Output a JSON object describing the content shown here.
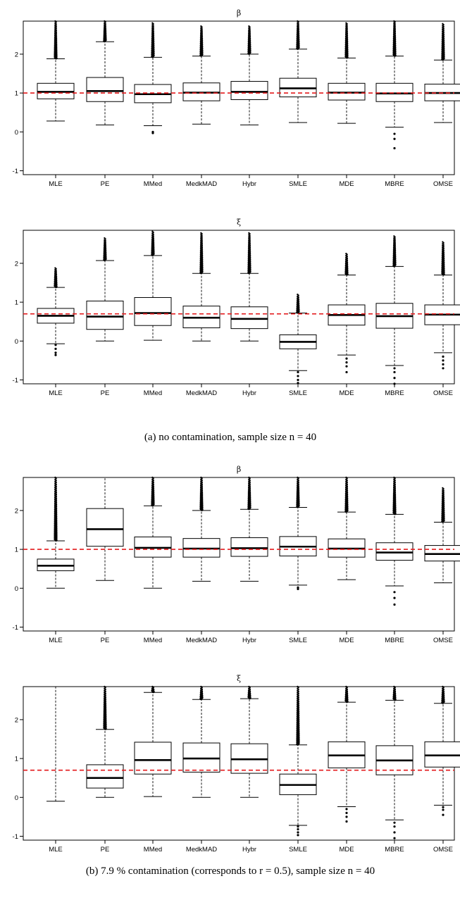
{
  "captions": {
    "a": "(a)  no contamination, sample size n = 40",
    "b": "(b)  7.9 % contamination (corresponds to r = 0.5), sample size n = 40"
  },
  "chart_data": [
    {
      "type": "boxplot",
      "title": "β",
      "categories": [
        "MLE",
        "PE",
        "MMed",
        "MedkMAD",
        "Hybr",
        "SMLE",
        "MDE",
        "MBRE",
        "OMSE"
      ],
      "ylim": [
        -1.1,
        2.85
      ],
      "yticks": [
        -1,
        0,
        1,
        2
      ],
      "reference_line": 1.0,
      "boxes": [
        {
          "low": 0.28,
          "q1": 0.85,
          "median": 1.03,
          "q3": 1.25,
          "high": 1.88,
          "outlier_min": 1.9,
          "outlier_max": 2.85,
          "low_outliers": []
        },
        {
          "low": 0.18,
          "q1": 0.78,
          "median": 1.05,
          "q3": 1.4,
          "high": 2.32,
          "outlier_min": 2.34,
          "outlier_max": 2.85,
          "low_outliers": []
        },
        {
          "low": 0.16,
          "q1": 0.75,
          "median": 0.97,
          "q3": 1.22,
          "high": 1.92,
          "outlier_min": 1.94,
          "outlier_max": 2.8,
          "low_outliers": [
            0.0,
            -0.03
          ]
        },
        {
          "low": 0.2,
          "q1": 0.8,
          "median": 1.01,
          "q3": 1.26,
          "high": 1.95,
          "outlier_min": 1.97,
          "outlier_max": 2.72,
          "low_outliers": []
        },
        {
          "low": 0.18,
          "q1": 0.83,
          "median": 1.03,
          "q3": 1.3,
          "high": 2.0,
          "outlier_min": 2.02,
          "outlier_max": 2.72,
          "low_outliers": []
        },
        {
          "low": 0.24,
          "q1": 0.9,
          "median": 1.12,
          "q3": 1.38,
          "high": 2.13,
          "outlier_min": 2.15,
          "outlier_max": 2.85,
          "low_outliers": []
        },
        {
          "low": 0.22,
          "q1": 0.82,
          "median": 1.01,
          "q3": 1.25,
          "high": 1.9,
          "outlier_min": 1.92,
          "outlier_max": 2.8,
          "low_outliers": []
        },
        {
          "low": 0.12,
          "q1": 0.78,
          "median": 0.99,
          "q3": 1.25,
          "high": 1.95,
          "outlier_min": 1.97,
          "outlier_max": 2.85,
          "low_outliers": [
            -0.05,
            -0.18,
            -0.42
          ]
        },
        {
          "low": 0.24,
          "q1": 0.8,
          "median": 1.0,
          "q3": 1.23,
          "high": 1.85,
          "outlier_min": 1.87,
          "outlier_max": 2.78,
          "low_outliers": []
        }
      ]
    },
    {
      "type": "boxplot",
      "title": "ξ",
      "categories": [
        "MLE",
        "PE",
        "MMed",
        "MedkMAD",
        "Hybr",
        "SMLE",
        "MDE",
        "MBRE",
        "OMSE"
      ],
      "ylim": [
        -1.1,
        2.85
      ],
      "yticks": [
        -1,
        0,
        1,
        2
      ],
      "reference_line": 0.7,
      "boxes": [
        {
          "low": -0.07,
          "q1": 0.46,
          "median": 0.65,
          "q3": 0.84,
          "high": 1.38,
          "outlier_min": 1.4,
          "outlier_max": 1.88,
          "low_outliers": [
            -0.1,
            -0.2,
            -0.3,
            -0.36
          ]
        },
        {
          "low": 0.0,
          "q1": 0.3,
          "median": 0.63,
          "q3": 1.03,
          "high": 2.07,
          "outlier_min": 2.09,
          "outlier_max": 2.65,
          "low_outliers": []
        },
        {
          "low": 0.02,
          "q1": 0.4,
          "median": 0.72,
          "q3": 1.12,
          "high": 2.2,
          "outlier_min": 2.22,
          "outlier_max": 2.82,
          "low_outliers": []
        },
        {
          "low": 0.0,
          "q1": 0.34,
          "median": 0.6,
          "q3": 0.9,
          "high": 1.74,
          "outlier_min": 1.76,
          "outlier_max": 2.78,
          "low_outliers": []
        },
        {
          "low": 0.0,
          "q1": 0.32,
          "median": 0.57,
          "q3": 0.88,
          "high": 1.74,
          "outlier_min": 1.76,
          "outlier_max": 2.78,
          "low_outliers": []
        },
        {
          "low": -0.76,
          "q1": -0.2,
          "median": -0.02,
          "q3": 0.16,
          "high": 0.72,
          "outlier_min": 0.74,
          "outlier_max": 1.2,
          "low_outliers": [
            -0.8,
            -0.9,
            -1.0,
            -1.08
          ]
        },
        {
          "low": -0.36,
          "q1": 0.41,
          "median": 0.67,
          "q3": 0.93,
          "high": 1.7,
          "outlier_min": 1.72,
          "outlier_max": 2.25,
          "low_outliers": [
            -0.45,
            -0.55,
            -0.65,
            -0.8
          ]
        },
        {
          "low": -0.63,
          "q1": 0.33,
          "median": 0.64,
          "q3": 0.97,
          "high": 1.92,
          "outlier_min": 1.94,
          "outlier_max": 2.7,
          "low_outliers": [
            -0.7,
            -0.8,
            -0.95,
            -1.1
          ]
        },
        {
          "low": -0.3,
          "q1": 0.42,
          "median": 0.68,
          "q3": 0.93,
          "high": 1.7,
          "outlier_min": 1.72,
          "outlier_max": 2.55,
          "low_outliers": [
            -0.4,
            -0.5,
            -0.6,
            -0.7
          ]
        }
      ]
    },
    {
      "type": "boxplot",
      "title": "β",
      "categories": [
        "MLE",
        "PE",
        "MMed",
        "MedkMAD",
        "Hybr",
        "SMLE",
        "MDE",
        "MBRE",
        "OMSE"
      ],
      "ylim": [
        -1.1,
        2.85
      ],
      "yticks": [
        -1,
        0,
        1,
        2
      ],
      "reference_line": 1.0,
      "boxes": [
        {
          "low": 0.0,
          "q1": 0.45,
          "median": 0.58,
          "q3": 0.75,
          "high": 1.22,
          "outlier_min": 1.24,
          "outlier_max": 2.85,
          "low_outliers": []
        },
        {
          "low": 0.2,
          "q1": 1.08,
          "median": 1.52,
          "q3": 2.05,
          "high": 2.85,
          "outlier_min": null,
          "outlier_max": null,
          "low_outliers": []
        },
        {
          "low": 0.0,
          "q1": 0.8,
          "median": 1.04,
          "q3": 1.32,
          "high": 2.12,
          "outlier_min": 2.14,
          "outlier_max": 2.85,
          "low_outliers": []
        },
        {
          "low": 0.18,
          "q1": 0.8,
          "median": 1.02,
          "q3": 1.28,
          "high": 2.0,
          "outlier_min": 2.02,
          "outlier_max": 2.85,
          "low_outliers": []
        },
        {
          "low": 0.18,
          "q1": 0.82,
          "median": 1.03,
          "q3": 1.3,
          "high": 2.03,
          "outlier_min": 2.05,
          "outlier_max": 2.85,
          "low_outliers": []
        },
        {
          "low": 0.08,
          "q1": 0.83,
          "median": 1.07,
          "q3": 1.33,
          "high": 2.08,
          "outlier_min": 2.1,
          "outlier_max": 2.85,
          "low_outliers": [
            0.02,
            -0.02
          ]
        },
        {
          "low": 0.22,
          "q1": 0.8,
          "median": 1.02,
          "q3": 1.27,
          "high": 1.96,
          "outlier_min": 1.98,
          "outlier_max": 2.85,
          "low_outliers": []
        },
        {
          "low": 0.06,
          "q1": 0.72,
          "median": 0.92,
          "q3": 1.17,
          "high": 1.9,
          "outlier_min": 1.92,
          "outlier_max": 2.85,
          "low_outliers": [
            -0.1,
            -0.25,
            -0.42
          ]
        },
        {
          "low": 0.14,
          "q1": 0.7,
          "median": 0.88,
          "q3": 1.1,
          "high": 1.7,
          "outlier_min": 1.72,
          "outlier_max": 2.58,
          "low_outliers": []
        }
      ]
    },
    {
      "type": "boxplot",
      "title": "ξ",
      "categories": [
        "MLE",
        "PE",
        "MMed",
        "MedkMAD",
        "Hybr",
        "SMLE",
        "MDE",
        "MBRE",
        "OMSE"
      ],
      "ylim": [
        -1.1,
        2.85
      ],
      "yticks": [
        -1,
        0,
        1,
        2
      ],
      "reference_line": 0.7,
      "boxes": [
        {
          "low": -0.1,
          "q1": null,
          "median": null,
          "q3": null,
          "high": 2.85,
          "outlier_min": null,
          "outlier_max": null,
          "low_outliers": []
        },
        {
          "low": 0.0,
          "q1": 0.24,
          "median": 0.5,
          "q3": 0.84,
          "high": 1.75,
          "outlier_min": 1.77,
          "outlier_max": 2.85,
          "low_outliers": []
        },
        {
          "low": 0.02,
          "q1": 0.6,
          "median": 0.96,
          "q3": 1.42,
          "high": 2.7,
          "outlier_min": 2.72,
          "outlier_max": 2.85,
          "low_outliers": []
        },
        {
          "low": 0.0,
          "q1": 0.65,
          "median": 1.0,
          "q3": 1.4,
          "high": 2.52,
          "outlier_min": 2.54,
          "outlier_max": 2.85,
          "low_outliers": []
        },
        {
          "low": 0.0,
          "q1": 0.62,
          "median": 0.98,
          "q3": 1.38,
          "high": 2.54,
          "outlier_min": 2.56,
          "outlier_max": 2.85,
          "low_outliers": []
        },
        {
          "low": -0.72,
          "q1": 0.07,
          "median": 0.32,
          "q3": 0.6,
          "high": 1.35,
          "outlier_min": 1.37,
          "outlier_max": 2.85,
          "low_outliers": [
            -0.75,
            -0.82,
            -0.9,
            -0.97
          ]
        },
        {
          "low": -0.24,
          "q1": 0.76,
          "median": 1.08,
          "q3": 1.43,
          "high": 2.45,
          "outlier_min": 2.47,
          "outlier_max": 2.85,
          "low_outliers": [
            -0.3,
            -0.4,
            -0.5,
            -0.62
          ]
        },
        {
          "low": -0.58,
          "q1": 0.58,
          "median": 0.95,
          "q3": 1.33,
          "high": 2.5,
          "outlier_min": 2.52,
          "outlier_max": 2.85,
          "low_outliers": [
            -0.65,
            -0.75,
            -0.9,
            -1.05
          ]
        },
        {
          "low": -0.2,
          "q1": 0.78,
          "median": 1.08,
          "q3": 1.43,
          "high": 2.42,
          "outlier_min": 2.44,
          "outlier_max": 2.85,
          "low_outliers": [
            -0.25,
            -0.32,
            -0.45
          ]
        }
      ]
    }
  ]
}
